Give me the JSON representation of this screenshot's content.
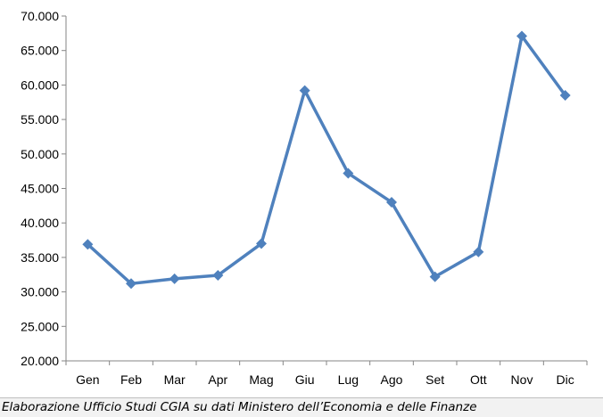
{
  "chart_data": {
    "type": "line",
    "title": "",
    "xlabel": "",
    "ylabel": "",
    "categories": [
      "Gen",
      "Feb",
      "Mar",
      "Apr",
      "Mag",
      "Giu",
      "Lug",
      "Ago",
      "Set",
      "Ott",
      "Nov",
      "Dic"
    ],
    "series": [
      {
        "color": "#4f81bd",
        "values": [
          36900,
          31200,
          31900,
          32400,
          37000,
          59200,
          47200,
          43000,
          32200,
          35800,
          67100,
          58500
        ]
      }
    ],
    "ylim": [
      20000,
      70000
    ],
    "ytick_labels": [
      "20.000",
      "25.000",
      "30.000",
      "35.000",
      "40.000",
      "45.000",
      "50.000",
      "55.000",
      "60.000",
      "65.000",
      "70.000"
    ],
    "grid": false,
    "legend": "none"
  },
  "source_note": "Elaborazione Ufficio Studi CGIA su dati Ministero dell’Economia e delle Finanze"
}
